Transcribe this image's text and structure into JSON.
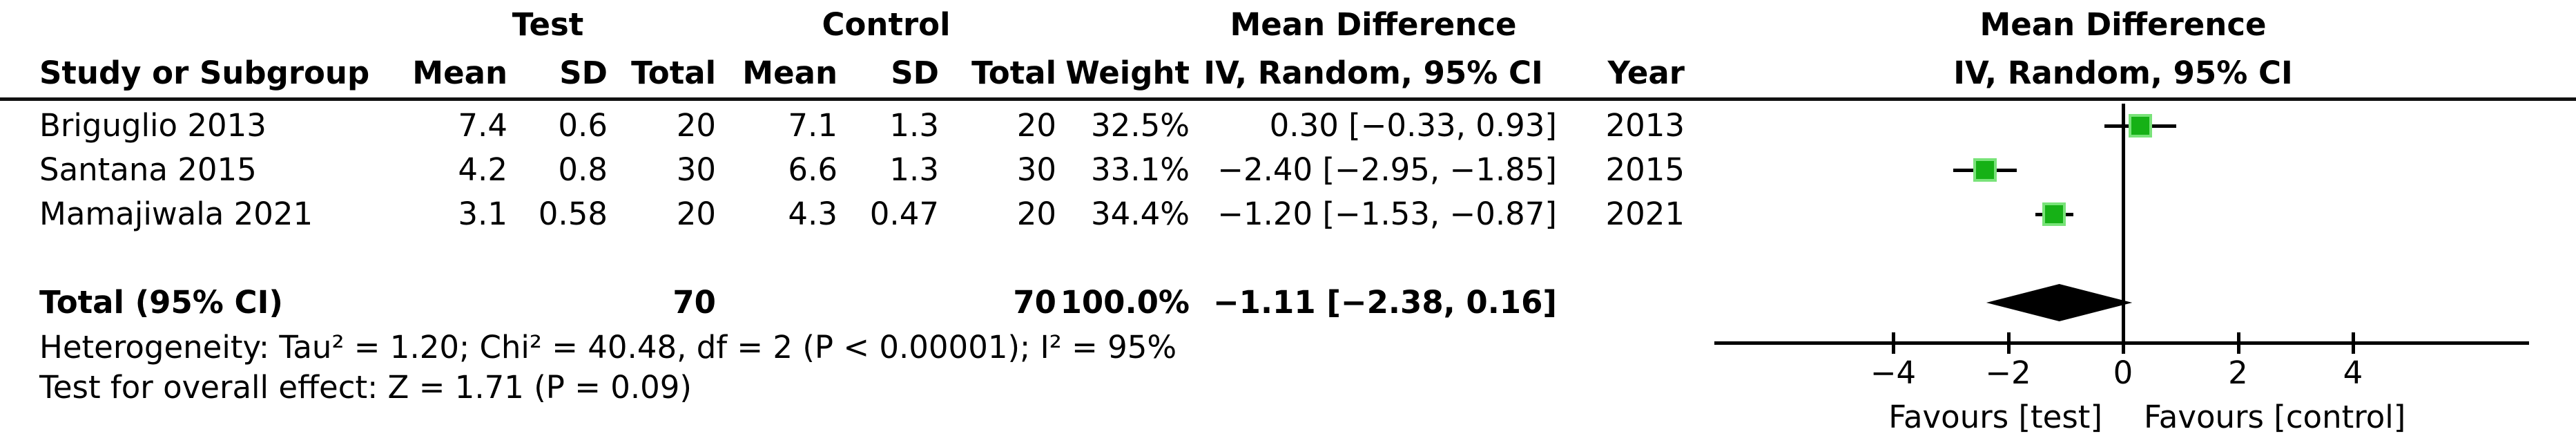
{
  "table": {
    "group_headers": {
      "test": "Test",
      "control": "Control",
      "md_left": "Mean Difference",
      "md_right": "Mean Difference"
    },
    "col_headers": {
      "study": "Study or Subgroup",
      "t_mean": "Mean",
      "t_sd": "SD",
      "t_total": "Total",
      "c_mean": "Mean",
      "c_sd": "SD",
      "c_total": "Total",
      "weight": "Weight",
      "ci": "IV, Random, 95% CI",
      "year": "Year",
      "ci_right": "IV, Random, 95% CI"
    },
    "rows": [
      {
        "study": "Briguglio 2013",
        "t_mean": "7.4",
        "t_sd": "0.6",
        "t_total": "20",
        "c_mean": "7.1",
        "c_sd": "1.3",
        "c_total": "20",
        "weight": "32.5%",
        "ci": "0.30 [−0.33, 0.93]",
        "year": "2013"
      },
      {
        "study": "Santana 2015",
        "t_mean": "4.2",
        "t_sd": "0.8",
        "t_total": "30",
        "c_mean": "6.6",
        "c_sd": "1.3",
        "c_total": "30",
        "weight": "33.1%",
        "ci": "−2.40 [−2.95, −1.85]",
        "year": "2015"
      },
      {
        "study": "Mamajiwala 2021",
        "t_mean": "3.1",
        "t_sd": "0.58",
        "t_total": "20",
        "c_mean": "4.3",
        "c_sd": "0.47",
        "c_total": "20",
        "weight": "34.4%",
        "ci": "−1.20 [−1.53, −0.87]",
        "year": "2021"
      }
    ],
    "total_row": {
      "label": "Total (95% CI)",
      "t_total": "70",
      "c_total": "70",
      "weight": "100.0%",
      "ci": "−1.11 [−2.38, 0.16]"
    },
    "footnotes": [
      "Heterogeneity: Tau² = 1.20; Chi² = 40.48, df = 2 (P < 0.00001); I² = 95%",
      "Test for overall effect: Z = 1.71 (P = 0.09)"
    ]
  },
  "chart_data": {
    "type": "scatter",
    "subtype": "forest-plot",
    "title": "Mean Difference",
    "subtitle": "IV, Random, 95% CI",
    "effect_measure": "Mean Difference, IV, Random, 95% CI",
    "x_ticks": [
      -4,
      -2,
      0,
      2,
      4
    ],
    "x_tick_labels": [
      "−4",
      "−2",
      "0",
      "2",
      "4"
    ],
    "xlim": [
      -7.1,
      7.1
    ],
    "zero_line": 0,
    "xlabel_left": "Favours [test]",
    "xlabel_right": "Favours [control]",
    "studies": [
      {
        "name": "Briguglio 2013",
        "md": 0.3,
        "ci_low": -0.33,
        "ci_high": 0.93,
        "weight_pct": 32.5,
        "year": 2013
      },
      {
        "name": "Santana 2015",
        "md": -2.4,
        "ci_low": -2.95,
        "ci_high": -1.85,
        "weight_pct": 33.1,
        "year": 2015
      },
      {
        "name": "Mamajiwala 2021",
        "md": -1.2,
        "ci_low": -1.53,
        "ci_high": -0.87,
        "weight_pct": 34.4,
        "year": 2021
      }
    ],
    "total": {
      "label": "Total (95% CI)",
      "md": -1.11,
      "ci_low": -2.38,
      "ci_high": 0.16,
      "weight_pct": 100.0
    },
    "heterogeneity": {
      "tau2": 1.2,
      "chi2": 40.48,
      "df": 2,
      "p": "< 0.00001",
      "i2_pct": 95
    },
    "overall_effect": {
      "z": 1.71,
      "p": 0.09
    },
    "marker_color": "#16b116",
    "marker_edge_color": "#79e379",
    "diamond_color": "#000000",
    "legend_position": "none",
    "grid": false
  }
}
